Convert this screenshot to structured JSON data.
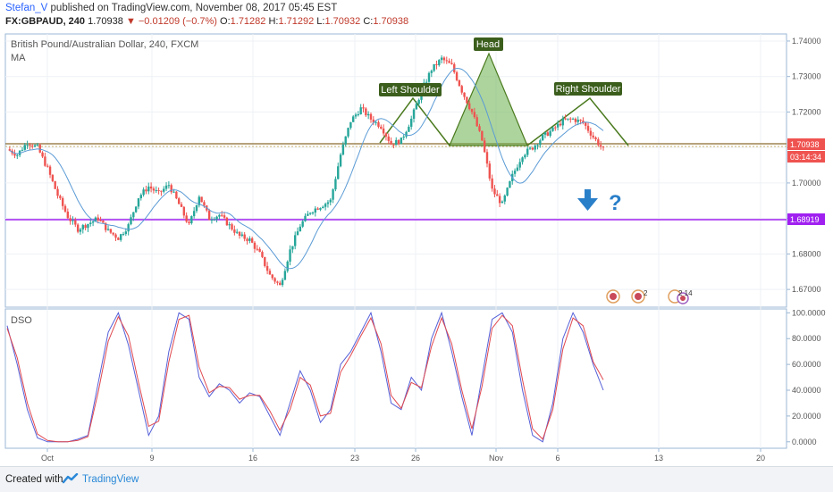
{
  "header": {
    "author": "Stefan_V",
    "published": "published on TradingView.com, November 08, 2017 05:45 EST",
    "symbol": "FX:GBPAUD, 240",
    "last": "1.70938",
    "change": "▼ −0.01209 (−0.7%)",
    "open_label": "O:",
    "open": "1.71282",
    "high_label": "H:",
    "high": "1.71292",
    "low_label": "L:",
    "low": "1.70932",
    "close_label": "C:",
    "close": "1.70938"
  },
  "pane": {
    "title": "British Pound/Australian Dollar, 240, FXCM",
    "indicator": "MA",
    "osc_title": "DSO"
  },
  "annotations": {
    "left_shoulder": "Left Shoulder",
    "head": "Head",
    "right_shoulder": "Right Shoulder",
    "question": "?"
  },
  "price_tags": {
    "last": "1.70938",
    "countdown": "03:14:34",
    "support": "1.68919"
  },
  "event_badges": [
    "",
    "2",
    "2 14"
  ],
  "colors": {
    "up": "#26a69a",
    "down": "#ef5350",
    "ma": "#5b9bd5",
    "neckline": "#8b6b2e",
    "support": "#a020f0",
    "pattern": "#4a7a1e",
    "last_tag": "#ef5350",
    "arrow": "#2a7fc9"
  },
  "footer": {
    "created": "Created with",
    "brand": "TradingView"
  },
  "chart_data": [
    {
      "type": "candlestick",
      "title": "British Pound/Australian Dollar, 240, FXCM",
      "x_ticks": [
        "Oct",
        "9",
        "16",
        "23",
        "26",
        "Nov",
        "6",
        "13",
        "20"
      ],
      "y_ticks": [
        "1.74000",
        "1.73000",
        "1.72000",
        "1.71000",
        "1.70000",
        "1.69000",
        "1.68000",
        "1.67000"
      ],
      "ylim": [
        1.665,
        1.742
      ],
      "price_path_estimate": [
        [
          0,
          1.7095
        ],
        [
          4,
          1.708
        ],
        [
          8,
          1.7115
        ],
        [
          12,
          1.71
        ],
        [
          16,
          1.704
        ],
        [
          20,
          1.6965
        ],
        [
          24,
          1.6905
        ],
        [
          28,
          1.687
        ],
        [
          32,
          1.6885
        ],
        [
          36,
          1.69
        ],
        [
          40,
          1.6865
        ],
        [
          44,
          1.6845
        ],
        [
          48,
          1.688
        ],
        [
          52,
          1.696
        ],
        [
          56,
          1.699
        ],
        [
          60,
          1.697
        ],
        [
          64,
          1.6995
        ],
        [
          68,
          1.694
        ],
        [
          72,
          1.688
        ],
        [
          76,
          1.6965
        ],
        [
          80,
          1.69
        ],
        [
          84,
          1.691
        ],
        [
          88,
          1.688
        ],
        [
          92,
          1.685
        ],
        [
          96,
          1.684
        ],
        [
          100,
          1.68
        ],
        [
          104,
          1.674
        ],
        [
          108,
          1.671
        ],
        [
          112,
          1.681
        ],
        [
          116,
          1.688
        ],
        [
          120,
          1.692
        ],
        [
          124,
          1.6935
        ],
        [
          128,
          1.695
        ],
        [
          132,
          1.708
        ],
        [
          136,
          1.7175
        ],
        [
          140,
          1.721
        ],
        [
          144,
          1.718
        ],
        [
          148,
          1.716
        ],
        [
          152,
          1.711
        ],
        [
          156,
          1.712
        ],
        [
          160,
          1.718
        ],
        [
          164,
          1.726
        ],
        [
          168,
          1.732
        ],
        [
          172,
          1.735
        ],
        [
          176,
          1.733
        ],
        [
          180,
          1.726
        ],
        [
          184,
          1.72
        ],
        [
          188,
          1.712
        ],
        [
          192,
          1.698
        ],
        [
          196,
          1.694
        ],
        [
          200,
          1.702
        ],
        [
          204,
          1.708
        ],
        [
          208,
          1.71
        ],
        [
          212,
          1.713
        ],
        [
          216,
          1.715
        ],
        [
          220,
          1.7175
        ],
        [
          224,
          1.718
        ],
        [
          228,
          1.717
        ],
        [
          232,
          1.713
        ],
        [
          236,
          1.7094
        ]
      ],
      "lines": [
        {
          "name": "neckline",
          "value": 1.71
        },
        {
          "name": "support",
          "value": 1.68919
        }
      ],
      "last_price": 1.70938
    },
    {
      "type": "line",
      "title": "DSO",
      "y_ticks": [
        "100.0000",
        "80.0000",
        "60.0000",
        "40.0000",
        "20.0000",
        "0.0000"
      ],
      "ylim": [
        -5,
        103
      ],
      "series": [
        {
          "values": [
            90,
            60,
            25,
            3,
            0,
            0,
            0,
            2,
            5,
            45,
            85,
            100,
            75,
            40,
            5,
            20,
            70,
            100,
            95,
            50,
            35,
            45,
            40,
            30,
            38,
            35,
            20,
            5,
            30,
            55,
            40,
            15,
            25,
            60,
            70,
            85,
            100,
            70,
            30,
            25,
            50,
            40,
            80,
            100,
            70,
            35,
            5,
            50,
            95,
            100,
            85,
            40,
            5,
            0,
            30,
            80,
            100,
            85,
            60,
            40
          ]
        },
        {
          "values": [
            88,
            65,
            30,
            6,
            1,
            0,
            0,
            1,
            4,
            38,
            78,
            97,
            82,
            46,
            12,
            16,
            62,
            95,
            98,
            58,
            38,
            43,
            42,
            33,
            36,
            36,
            24,
            9,
            25,
            50,
            44,
            20,
            22,
            54,
            67,
            82,
            96,
            76,
            36,
            26,
            46,
            42,
            74,
            96,
            76,
            40,
            10,
            43,
            88,
            98,
            90,
            48,
            10,
            2,
            25,
            72,
            96,
            90,
            62,
            48
          ]
        }
      ]
    }
  ]
}
